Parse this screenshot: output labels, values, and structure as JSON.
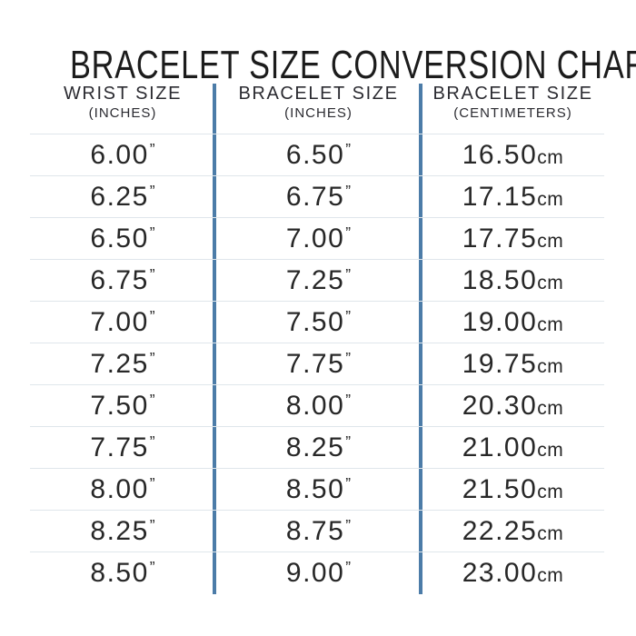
{
  "title": "BRACELET SIZE CONVERSION CHART",
  "units": {
    "inch_mark": "”",
    "cm": "cm"
  },
  "table": {
    "headers": [
      {
        "label": "WRIST SIZE",
        "sublabel": "(INCHES)"
      },
      {
        "label": "BRACELET SIZE",
        "sublabel": "(INCHES)"
      },
      {
        "label": "BRACELET SIZE",
        "sublabel": "(CENTIMETERS)"
      }
    ],
    "rows": [
      {
        "wrist_in": "6.00",
        "bracelet_in": "6.50",
        "bracelet_cm": "16.50"
      },
      {
        "wrist_in": "6.25",
        "bracelet_in": "6.75",
        "bracelet_cm": "17.15"
      },
      {
        "wrist_in": "6.50",
        "bracelet_in": "7.00",
        "bracelet_cm": "17.75"
      },
      {
        "wrist_in": "6.75",
        "bracelet_in": "7.25",
        "bracelet_cm": "18.50"
      },
      {
        "wrist_in": "7.00",
        "bracelet_in": "7.50",
        "bracelet_cm": "19.00"
      },
      {
        "wrist_in": "7.25",
        "bracelet_in": "7.75",
        "bracelet_cm": "19.75"
      },
      {
        "wrist_in": "7.50",
        "bracelet_in": "8.00",
        "bracelet_cm": "20.30"
      },
      {
        "wrist_in": "7.75",
        "bracelet_in": "8.25",
        "bracelet_cm": "21.00"
      },
      {
        "wrist_in": "8.00",
        "bracelet_in": "8.50",
        "bracelet_cm": "21.50"
      },
      {
        "wrist_in": "8.25",
        "bracelet_in": "8.75",
        "bracelet_cm": "22.25"
      },
      {
        "wrist_in": "8.50",
        "bracelet_in": "9.00",
        "bracelet_cm": "23.00"
      }
    ]
  },
  "chart_data": {
    "type": "table",
    "title": "BRACELET SIZE CONVERSION CHART",
    "columns": [
      "WRIST SIZE (INCHES)",
      "BRACELET SIZE (INCHES)",
      "BRACELET SIZE (CENTIMETERS)"
    ],
    "rows": [
      [
        "6.00”",
        "6.50”",
        "16.50cm"
      ],
      [
        "6.25”",
        "6.75”",
        "17.15cm"
      ],
      [
        "6.50”",
        "7.00”",
        "17.75cm"
      ],
      [
        "6.75”",
        "7.25”",
        "18.50cm"
      ],
      [
        "7.00”",
        "7.50”",
        "19.00cm"
      ],
      [
        "7.25”",
        "7.75”",
        "19.75cm"
      ],
      [
        "7.50”",
        "8.00”",
        "20.30cm"
      ],
      [
        "7.75”",
        "8.25”",
        "21.00cm"
      ],
      [
        "8.00”",
        "8.50”",
        "21.50cm"
      ],
      [
        "8.25”",
        "8.75”",
        "22.25cm"
      ],
      [
        "8.50”",
        "9.00”",
        "23.00cm"
      ]
    ]
  },
  "colors": {
    "divider_blue": "#4c7ca8",
    "row_line": "#dfe6eb",
    "title_text": "#1c1c1c",
    "body_text": "#272727"
  }
}
